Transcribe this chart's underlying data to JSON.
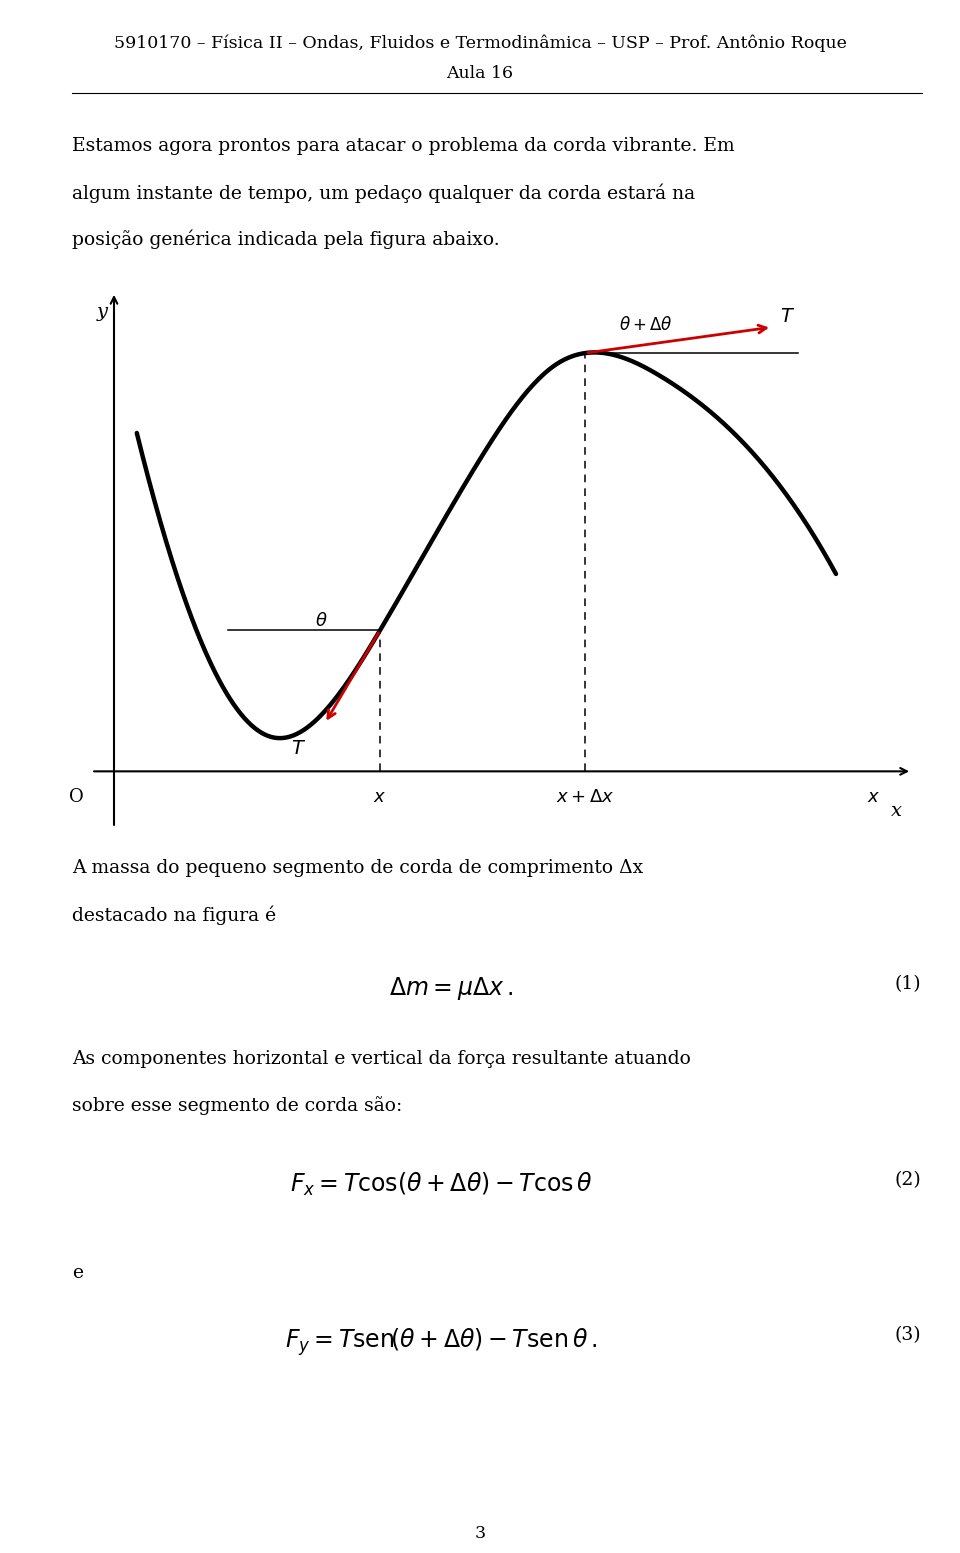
{
  "page_width": 9.6,
  "page_height": 15.53,
  "bg_color": "#ffffff",
  "header_line1": "5910170 – Física II – Ondas, Fluidos e Termodinâmica – USP – Prof. Antônio Roque",
  "header_line2": "Aula 16",
  "page_number": "3",
  "para1_l1": "Estamos agora prontos para atacar o problema da corda vibrante. Em",
  "para1_l2": "algum instante de tempo, um pedaço qualquer da corda estará na",
  "para1_l3": "posição genérica indicada pela figura abaixo.",
  "text_fig_l1": "A massa do pequeno segmento de corda de comprimento Δx",
  "text_fig_l2": "destacado na figura é",
  "text_after_eq1_l1": "As componentes horizontal e vertical da força resultante atuando",
  "text_after_eq1_l2": "sobre esse segmento de corda são:",
  "text_e": "e",
  "eq1_label": "(1)",
  "eq2_label": "(2)",
  "eq3_label": "(3)",
  "curve_color": "#000000",
  "arrow_color": "#cc0000",
  "axis_color": "#000000",
  "text_color": "#000000"
}
